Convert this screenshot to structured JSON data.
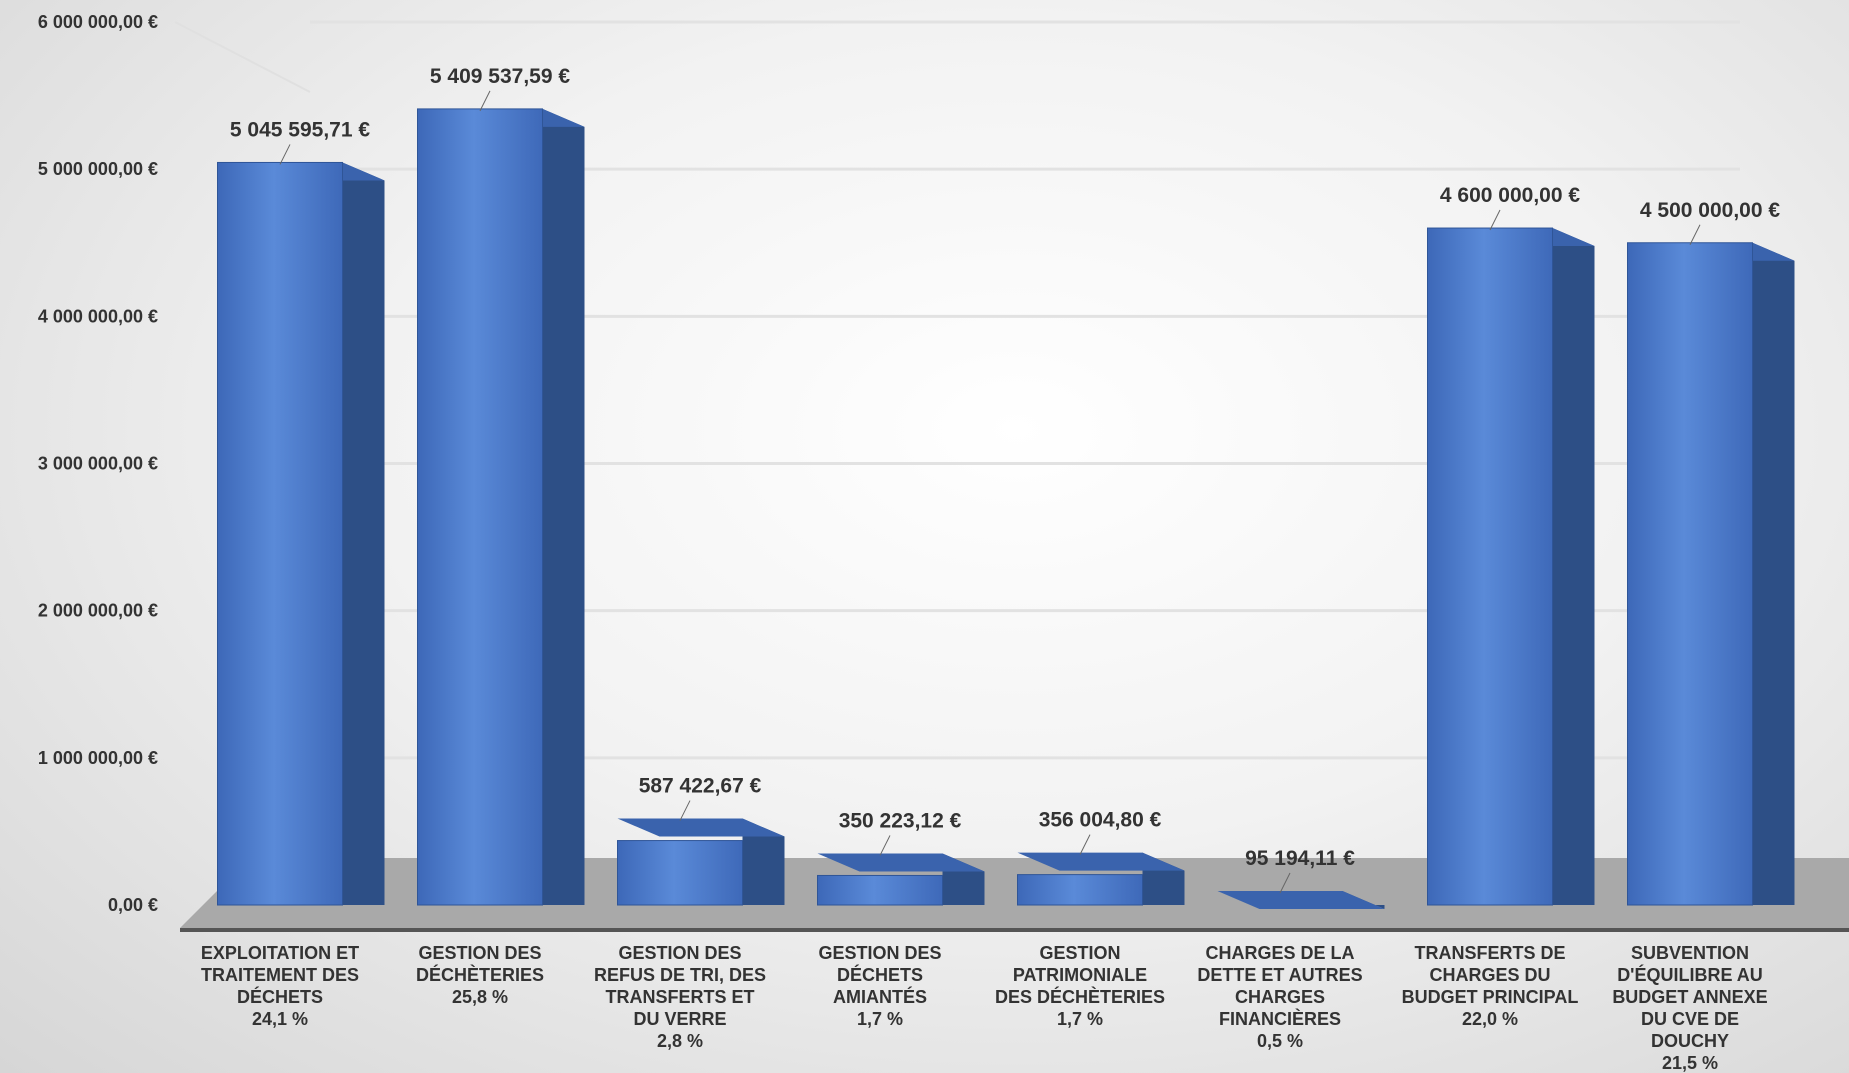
{
  "chart_data": {
    "type": "bar",
    "title": "",
    "xlabel": "",
    "ylabel": "",
    "ylim": [
      0,
      6000000
    ],
    "y_ticks": [
      "0,00 €",
      "1 000 000,00 €",
      "2 000 000,00 €",
      "3 000 000,00 €",
      "4 000 000,00 €",
      "5 000 000,00 €",
      "6 000 000,00 €"
    ],
    "grid": true,
    "three_d": true,
    "bar_color": "#4472c4",
    "categories": [
      {
        "lines": [
          "EXPLOITATION ET",
          "TRAITEMENT DES",
          "DÉCHETS"
        ],
        "percent": "24,1 %"
      },
      {
        "lines": [
          "GESTION DES",
          "DÉCHÈTERIES"
        ],
        "percent": "25,8 %"
      },
      {
        "lines": [
          "GESTION DES",
          "REFUS DE TRI, DES",
          "TRANSFERTS ET",
          "DU VERRE"
        ],
        "percent": "2,8 %"
      },
      {
        "lines": [
          "GESTION DES",
          "DÉCHETS",
          "AMIANTÉS"
        ],
        "percent": "1,7 %"
      },
      {
        "lines": [
          "GESTION",
          "PATRIMONIALE",
          "DES DÉCHÈTERIES"
        ],
        "percent": "1,7 %"
      },
      {
        "lines": [
          "CHARGES DE LA",
          "DETTE ET AUTRES",
          "CHARGES",
          "FINANCIÈRES"
        ],
        "percent": "0,5 %"
      },
      {
        "lines": [
          "TRANSFERTS DE",
          "CHARGES DU",
          "BUDGET PRINCIPAL"
        ],
        "percent": "22,0 %"
      },
      {
        "lines": [
          "SUBVENTION",
          "D'ÉQUILIBRE AU",
          "BUDGET ANNEXE",
          "DU CVE DE",
          "DOUCHY"
        ],
        "percent": "21,5 %"
      }
    ],
    "values": [
      5045595.71,
      5409537.59,
      587422.67,
      350223.12,
      356004.8,
      95194.11,
      4600000.0,
      4500000.0
    ],
    "value_labels": [
      "5 045 595,71 €",
      "5 409 537,59 €",
      "587 422,67 €",
      "350 223,12 €",
      "356 004,80 €",
      "95 194,11 €",
      "4 600 000,00 €",
      "4 500 000,00 €"
    ]
  }
}
